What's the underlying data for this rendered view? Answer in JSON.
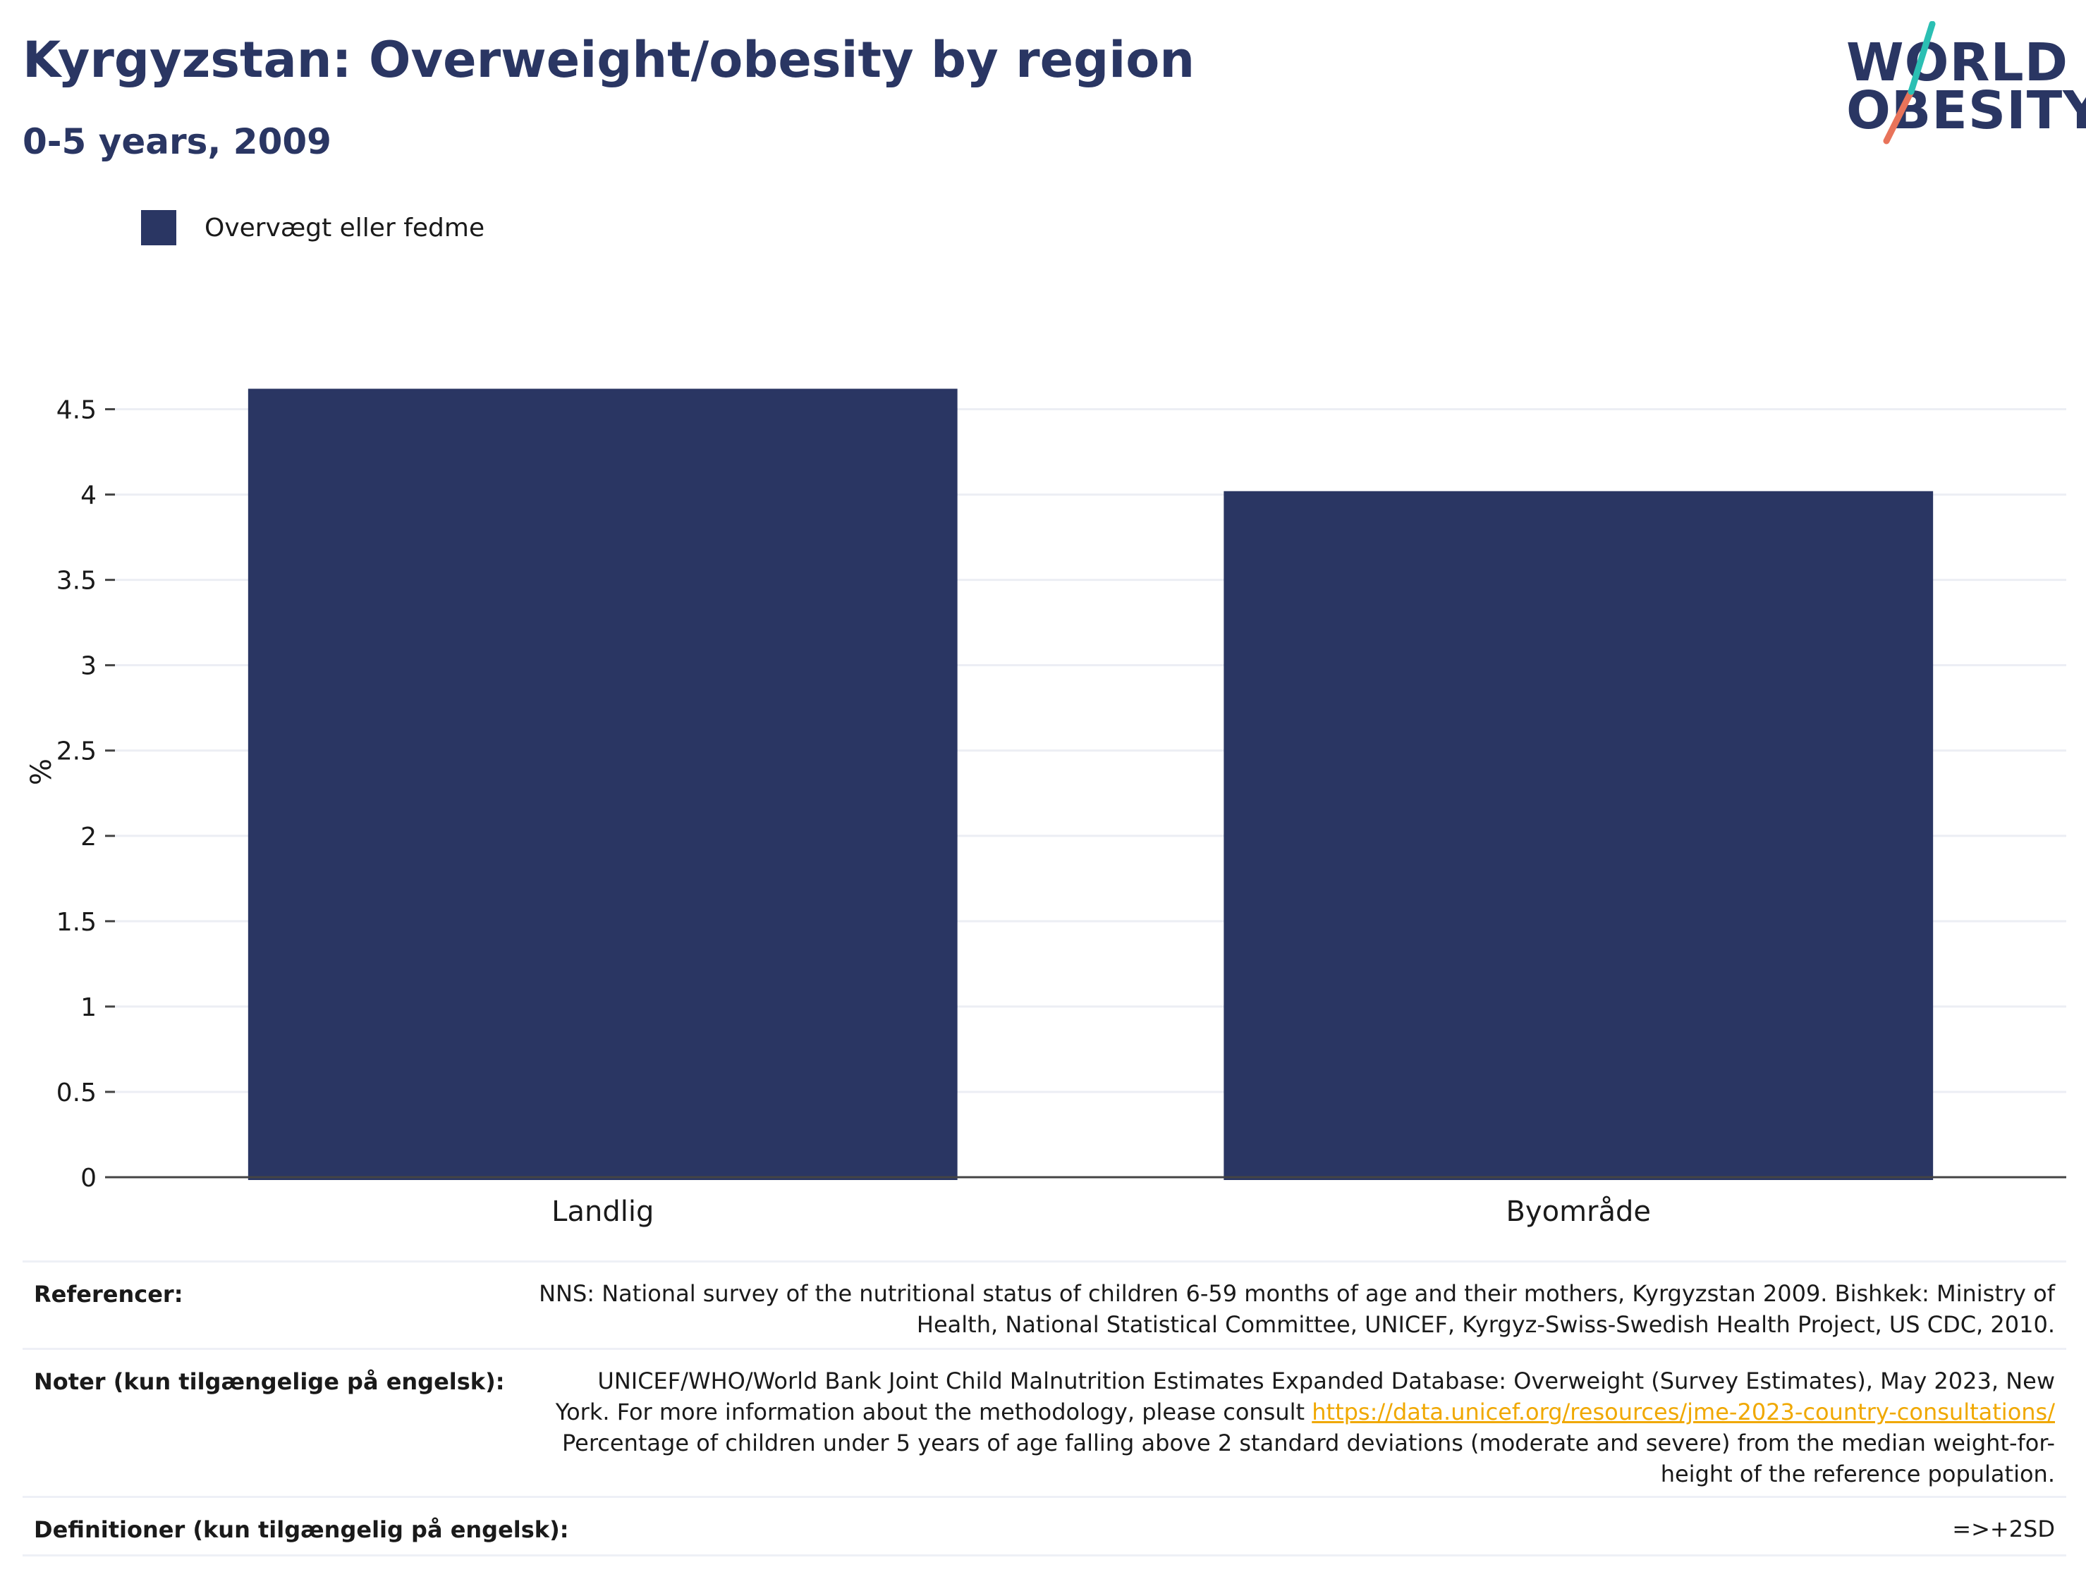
{
  "header": {
    "title": "Kyrgyzstan: Overweight/obesity by region",
    "subtitle": "0-5 years, 2009"
  },
  "logo": {
    "line1": "WORLD",
    "line2": "OBESITY",
    "accent_teal": "#2bbfb3",
    "accent_coral": "#e8735a"
  },
  "colors": {
    "bar": "#2a3663",
    "title": "#2a3663",
    "link": "#f0a800"
  },
  "chart_data": {
    "type": "bar",
    "categories": [
      "Landlig",
      "Byområde"
    ],
    "series": [
      {
        "name": "Overvægt eller fedme",
        "values": [
          4.62,
          4.02
        ]
      }
    ],
    "ylabel": "%",
    "xlabel": "",
    "ylim": [
      0,
      4.75
    ],
    "yticks": [
      "0",
      "0.5",
      "1",
      "1.5",
      "2",
      "2.5",
      "3",
      "3.5",
      "4",
      "4.5"
    ],
    "grid": true,
    "legend": "top-left"
  },
  "references": {
    "sources_label": "Referencer:",
    "sources_line1": "NNS: National survey of the nutritional status of children 6-59 months of age and their mothers, Kyrgyzstan 2009. Bishkek: Ministry of",
    "sources_line2": "Health, National Statistical Committee, UNICEF, Kyrgyz-Swiss-Swedish Health Project, US CDC, 2010.",
    "notes_label": "Noter (kun tilgængelige på engelsk):",
    "notes_line1": "UNICEF/WHO/World Bank Joint Child Malnutrition Estimates Expanded Database: Overweight (Survey Estimates), May 2023, New",
    "notes_line2_prefix": "York. For more information about the methodology, please consult ",
    "notes_link": "https://data.unicef.org/resources/jme-2023-country-consultations/",
    "notes_line3": "Percentage of children under 5 years of age falling above 2 standard deviations (moderate and severe) from the median weight-for-",
    "notes_line4": "height of the reference population.",
    "definitions_label": "Definitioner (kun tilgængelig på engelsk):",
    "definitions_value": "=>+2SD"
  }
}
